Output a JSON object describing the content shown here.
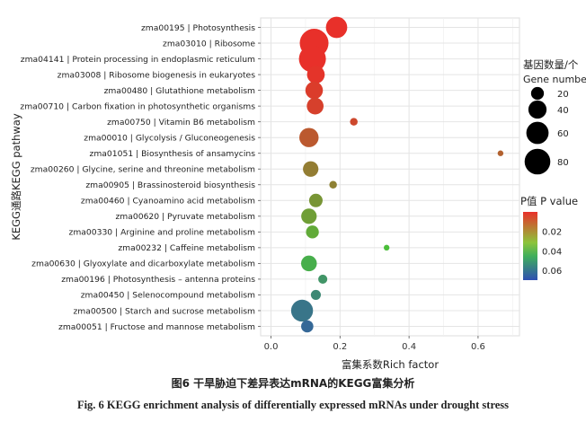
{
  "chart_data": {
    "type": "scatter",
    "subtype": "bubble",
    "xlabel": "富集系数Rich factor",
    "ylabel": "KEGG通路KEGG pathway",
    "xlim": [
      -0.03,
      0.72
    ],
    "xticks": [
      0.0,
      0.2,
      0.4,
      0.6
    ],
    "xtick_labels": [
      "0.0",
      "0.2",
      "0.4",
      "0.6"
    ],
    "grid": true,
    "pathways": [
      {
        "label": "zma00195 | Photosynthesis",
        "rich_factor": 0.19,
        "gene_number": 55,
        "pvalue": 0.0
      },
      {
        "label": "zma03010 | Ribosome",
        "rich_factor": 0.125,
        "gene_number": 100,
        "pvalue": 0.0
      },
      {
        "label": "zma04141 | Protein processing in endoplasmic reticulum",
        "rich_factor": 0.12,
        "gene_number": 88,
        "pvalue": 0.0
      },
      {
        "label": "zma03008 | Ribosome biogenesis in eukaryotes",
        "rich_factor": 0.13,
        "gene_number": 38,
        "pvalue": 0.001
      },
      {
        "label": "zma00480 | Glutathione metabolism",
        "rich_factor": 0.125,
        "gene_number": 37,
        "pvalue": 0.003
      },
      {
        "label": "zma00710 | Carbon fixation in photosynthetic organisms",
        "rich_factor": 0.128,
        "gene_number": 34,
        "pvalue": 0.004
      },
      {
        "label": "zma00750 | Vitamin B6 metabolism",
        "rich_factor": 0.24,
        "gene_number": 7,
        "pvalue": 0.006
      },
      {
        "label": "zma00010 | Glycolysis / Gluconeogenesis",
        "rich_factor": 0.11,
        "gene_number": 45,
        "pvalue": 0.01
      },
      {
        "label": "zma01051 | Biosynthesis of ansamycins",
        "rich_factor": 0.665,
        "gene_number": 4,
        "pvalue": 0.012
      },
      {
        "label": "zma00260 | Glycine, serine and threonine metabolism",
        "rich_factor": 0.115,
        "gene_number": 29,
        "pvalue": 0.019
      },
      {
        "label": "zma00905 | Brassinosteroid biosynthesis",
        "rich_factor": 0.18,
        "gene_number": 7,
        "pvalue": 0.02
      },
      {
        "label": "zma00460 | Cyanoamino acid metabolism",
        "rich_factor": 0.13,
        "gene_number": 22,
        "pvalue": 0.025
      },
      {
        "label": "zma00620 | Pyruvate metabolism",
        "rich_factor": 0.11,
        "gene_number": 29,
        "pvalue": 0.027
      },
      {
        "label": "zma00330 | Arginine and proline metabolism",
        "rich_factor": 0.12,
        "gene_number": 20,
        "pvalue": 0.03
      },
      {
        "label": "zma00232 | Caffeine metabolism",
        "rich_factor": 0.335,
        "gene_number": 4,
        "pvalue": 0.035
      },
      {
        "label": "zma00630 | Glyoxylate and dicarboxylate metabolism",
        "rich_factor": 0.11,
        "gene_number": 30,
        "pvalue": 0.04
      },
      {
        "label": "zma00196 | Photosynthesis – antenna proteins",
        "rich_factor": 0.15,
        "gene_number": 10,
        "pvalue": 0.048
      },
      {
        "label": "zma00450 | Selenocompound metabolism",
        "rich_factor": 0.13,
        "gene_number": 12,
        "pvalue": 0.052
      },
      {
        "label": "zma00500 | Starch and sucrose metabolism",
        "rich_factor": 0.09,
        "gene_number": 58,
        "pvalue": 0.058
      },
      {
        "label": "zma00051 | Fructose and mannose metabolism",
        "rich_factor": 0.105,
        "gene_number": 18,
        "pvalue": 0.062
      }
    ],
    "size_legend": {
      "title_cn": "基因数量/个",
      "title_en": "Gene number",
      "values": [
        20,
        40,
        60,
        80
      ]
    },
    "color_legend": {
      "title": "P值 P value",
      "range": [
        0.0,
        0.07
      ],
      "ticks": [
        0.02,
        0.04,
        0.06
      ],
      "tick_labels": [
        "0.02",
        "0.04",
        "0.06"
      ],
      "colors": [
        "#e8302a",
        "#4bbe3a",
        "#2f4fb2"
      ]
    }
  },
  "caption": {
    "cn": "图6   干旱胁迫下差异表达mRNA的KEGG富集分析",
    "en": "Fig. 6   KEGG enrichment analysis of differentially expressed mRNAs under drought stress"
  }
}
